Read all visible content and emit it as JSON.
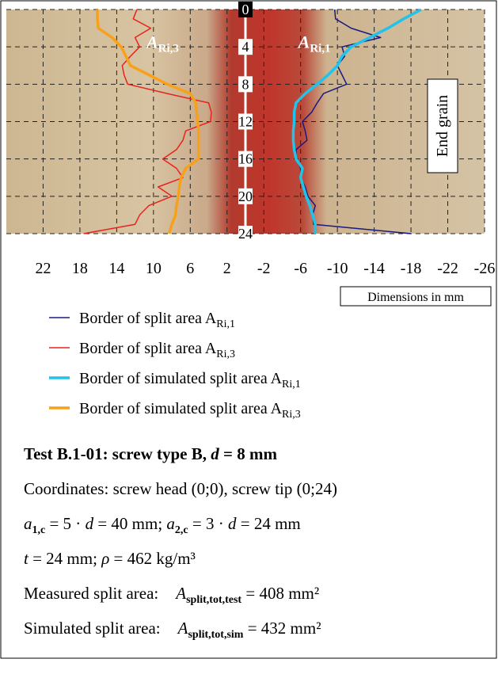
{
  "chart_data": {
    "type": "line",
    "xlim": [
      26,
      -26
    ],
    "ylim": [
      0,
      24
    ],
    "xticks": [
      22,
      18,
      14,
      10,
      6,
      2,
      -2,
      -6,
      -10,
      -14,
      -18,
      -22,
      -26
    ],
    "yticks": [
      0,
      4,
      8,
      12,
      16,
      20,
      24
    ],
    "grid": true,
    "x_note": "Dimensions in mm",
    "side_label": "End grain",
    "annotations": [
      {
        "symbol": "A",
        "sub": "Ri,3",
        "x": 9,
        "y": 3.5
      },
      {
        "symbol": "A",
        "sub": "Ri,1",
        "x": -7.5,
        "y": 3.5
      }
    ],
    "depth": [
      0,
      1,
      2,
      3,
      4,
      5,
      6,
      7,
      8,
      9,
      10,
      11,
      12,
      13,
      14,
      15,
      16,
      17,
      18,
      19,
      20,
      21,
      22,
      23,
      24
    ],
    "series": [
      {
        "name": "Border of split area A",
        "name_sub": "Ri,1",
        "color": "#1a1a80",
        "width": 1.5,
        "values": [
          -9.7,
          -9.8,
          -11.5,
          -14.7,
          -10.5,
          -10.8,
          -10,
          -10.5,
          -11,
          -8.5,
          -7.8,
          -7.2,
          -6.2,
          -6.5,
          -6.7,
          -5.5,
          -5.5,
          -6,
          -6,
          -6.5,
          -6.8,
          -7.6,
          -7.3,
          -7.4,
          -18
        ]
      },
      {
        "name": "Border of split area A",
        "name_sub": "Ri,3",
        "color": "#e8231e",
        "width": 1.5,
        "values": [
          11.8,
          12.2,
          10.3,
          12,
          11.5,
          12.5,
          13.4,
          13.2,
          12.8,
          8.5,
          4,
          3.7,
          3.8,
          6.5,
          6.8,
          7.5,
          9,
          7.5,
          6.8,
          9.5,
          8,
          10.5,
          11.5,
          12,
          17.6
        ]
      },
      {
        "name": "Border of simulated split area A",
        "name_sub": "Ri,1",
        "color": "#22c3ea",
        "width": 3.5,
        "values": [
          -19.1,
          -17.2,
          -15.5,
          -13.5,
          -11.5,
          -10.5,
          -10,
          -9,
          -7.8,
          -6.5,
          -5.5,
          -5.3,
          -5.3,
          -5.2,
          -5.2,
          -5.3,
          -5.5,
          -6.2,
          -6,
          -6.3,
          -6.6,
          -7,
          -7.3,
          -7.6,
          -7.6
        ]
      },
      {
        "name": "Border of simulated split area A",
        "name_sub": "Ri,3",
        "color": "#f7a11a",
        "width": 3.5,
        "values": [
          16.1,
          16.1,
          16,
          14.5,
          13.5,
          13,
          12.5,
          10.5,
          8.5,
          6,
          5.4,
          5.3,
          5.2,
          5.1,
          5.1,
          5.1,
          5.1,
          6.5,
          7,
          7.2,
          7.3,
          7.5,
          7.6,
          8,
          8.3
        ]
      }
    ]
  },
  "notes": {
    "title": [
      {
        "t": "Test B.1-01: screw type B, ",
        "s": "b"
      },
      {
        "t": "d",
        "s": "bi"
      },
      {
        "t": " = 8 mm",
        "s": "b"
      }
    ],
    "lines": [
      [
        {
          "t": "Coordinates: screw head (0;0), screw tip (0;24)",
          "s": "n"
        }
      ],
      [
        {
          "t": "a",
          "s": "i"
        },
        {
          "t": "1,c",
          "s": "sub"
        },
        {
          "t": " = 5 · ",
          "s": "n"
        },
        {
          "t": "d",
          "s": "i"
        },
        {
          "t": " = 40 mm; ",
          "s": "n"
        },
        {
          "t": "a",
          "s": "i"
        },
        {
          "t": "2,c",
          "s": "sub"
        },
        {
          "t": " = 3 · ",
          "s": "n"
        },
        {
          "t": "d",
          "s": "i"
        },
        {
          "t": " = 24 mm",
          "s": "n"
        }
      ],
      [
        {
          "t": "t",
          "s": "i"
        },
        {
          "t": " = 24 mm; ",
          "s": "n"
        },
        {
          "t": "ρ",
          "s": "i"
        },
        {
          "t": " = 462 kg/m³",
          "s": "n"
        }
      ],
      [
        {
          "t": "Measured split area:",
          "s": "n"
        },
        {
          "t": "A",
          "s": "it"
        },
        {
          "t": "split,tot,test",
          "s": "sub"
        },
        {
          "t": " = 408 mm²",
          "s": "n"
        }
      ],
      [
        {
          "t": "Simulated split area:",
          "s": "n"
        },
        {
          "t": "A",
          "s": "it"
        },
        {
          "t": "split,tot,sim",
          "s": "sub"
        },
        {
          "t": " = 432 mm²",
          "s": "n"
        }
      ]
    ]
  }
}
